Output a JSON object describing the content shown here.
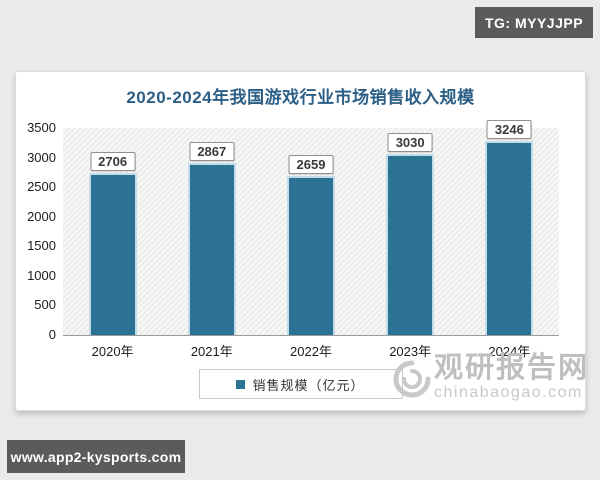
{
  "page": {
    "telegram_badge": "TG: MYYJJPP",
    "site_badge": "www.app2-kysports.com"
  },
  "watermark": {
    "name": "观研报告网",
    "url": "chinabaogao.com",
    "logo": "swirl-logo-icon"
  },
  "chart_data": {
    "type": "bar",
    "title": "2020-2024年我国游戏行业市场销售收入规模",
    "categories": [
      "2020年",
      "2021年",
      "2022年",
      "2023年",
      "2024年"
    ],
    "values": [
      2706,
      2867,
      2659,
      3030,
      3246
    ],
    "legend": "销售规模（亿元）",
    "xlabel": "",
    "ylabel": "",
    "ylim": [
      0,
      3500
    ],
    "yticks": [
      3500,
      3000,
      2500,
      2000,
      1500,
      1000,
      500,
      0
    ],
    "bar_color": "#2b7294",
    "title_color": "#2c5f86",
    "legend_position": "bottom",
    "grid": false,
    "data_labels": true,
    "plot_background": "diagonal-hatch"
  }
}
